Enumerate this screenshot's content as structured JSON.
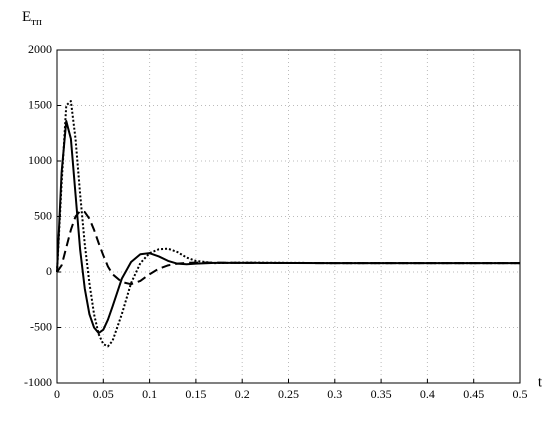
{
  "chart_data": {
    "type": "line",
    "ylabel": "E",
    "ylabel_sub": "тп",
    "xlabel": "t",
    "x": [
      0,
      0.005,
      0.01,
      0.015,
      0.02,
      0.025,
      0.03,
      0.035,
      0.04,
      0.045,
      0.05,
      0.055,
      0.06,
      0.07,
      0.08,
      0.09,
      0.1,
      0.11,
      0.12,
      0.13,
      0.14,
      0.15,
      0.17,
      0.2,
      0.3,
      0.4,
      0.5
    ],
    "series": [
      {
        "color": "#000000",
        "style": "solid",
        "values": [
          0,
          900,
          1360,
          1200,
          700,
          200,
          -150,
          -380,
          -500,
          -550,
          -520,
          -430,
          -310,
          -60,
          90,
          160,
          170,
          140,
          100,
          75,
          70,
          75,
          82,
          82,
          80,
          80,
          80
        ]
      },
      {
        "color": "#000000",
        "style": "dotted",
        "values": [
          0,
          800,
          1500,
          1540,
          1200,
          700,
          250,
          -100,
          -380,
          -560,
          -650,
          -670,
          -620,
          -380,
          -100,
          80,
          170,
          205,
          210,
          180,
          130,
          100,
          80,
          85,
          80,
          80,
          80
        ]
      },
      {
        "color": "#000000",
        "style": "dashed",
        "values": [
          0,
          60,
          220,
          380,
          500,
          550,
          540,
          480,
          380,
          260,
          150,
          50,
          -20,
          -90,
          -110,
          -80,
          -20,
          30,
          60,
          75,
          82,
          85,
          85,
          82,
          80,
          80,
          80
        ]
      }
    ],
    "xlim": [
      0,
      0.5
    ],
    "xticks": [
      0,
      0.05,
      0.1,
      0.15,
      0.2,
      0.25,
      0.3,
      0.35,
      0.4,
      0.45,
      0.5
    ],
    "ylim": [
      -1000,
      2000
    ],
    "yticks": [
      -1000,
      -500,
      0,
      500,
      1000,
      1500,
      2000
    ],
    "grid": true
  }
}
